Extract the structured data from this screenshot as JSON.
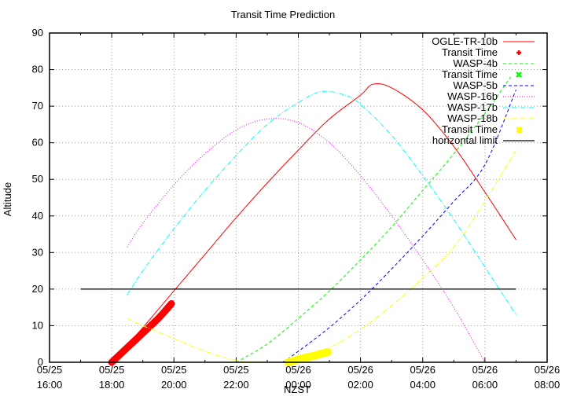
{
  "chart_data": {
    "type": "line",
    "title": "Transit Time Prediction",
    "xlabel": "NZST",
    "ylabel": "Altitude",
    "ylim": [
      0,
      90
    ],
    "yticks": [
      0,
      10,
      20,
      30,
      40,
      50,
      60,
      70,
      80,
      90
    ],
    "xlim_hours_from_start": [
      0,
      16
    ],
    "xticks": [
      {
        "date": "05/25",
        "time": "16:00"
      },
      {
        "date": "05/25",
        "time": "18:00"
      },
      {
        "date": "05/25",
        "time": "20:00"
      },
      {
        "date": "05/25",
        "time": "22:00"
      },
      {
        "date": "05/26",
        "time": "00:00"
      },
      {
        "date": "05/26",
        "time": "02:00"
      },
      {
        "date": "05/26",
        "time": "04:00"
      },
      {
        "date": "05/26",
        "time": "06:00"
      },
      {
        "date": "05/26",
        "time": "08:00"
      }
    ],
    "grid": true,
    "legend_position": "top-right",
    "series": [
      {
        "name": "OGLE-TR-10b",
        "style": "solid",
        "color": "#ff0000",
        "x": [
          2.0,
          3.0,
          4.0,
          5.0,
          6.0,
          7.0,
          8.0,
          9.0,
          10.0,
          10.4,
          11.0,
          12.0,
          13.0,
          14.0,
          15.0
        ],
        "y": [
          0,
          9.5,
          19.5,
          29.5,
          39.5,
          49,
          58,
          66.5,
          73,
          76,
          75,
          69,
          59,
          46.5,
          33.5
        ]
      },
      {
        "name": "Transit Time",
        "style": "points",
        "color": "#ff0000",
        "marker": "plus",
        "x": [
          2.0,
          2.5,
          3.0,
          3.5,
          3.92
        ],
        "y": [
          0,
          4,
          8,
          12,
          16
        ]
      },
      {
        "name": "WASP-4b",
        "style": "dashed",
        "color": "#00ff00",
        "x": [
          6.0,
          7.0,
          8.0,
          9.0,
          10.0,
          11.0,
          12.0,
          13.0,
          14.0,
          14.83
        ],
        "y": [
          0,
          5,
          12,
          19.5,
          28,
          37,
          47,
          57,
          68,
          78
        ]
      },
      {
        "name": "Transit Time",
        "style": "points",
        "color": "#00ff00",
        "marker": "cross",
        "x": [],
        "y": []
      },
      {
        "name": "WASP-5b",
        "style": "dashed",
        "color": "#0000ff",
        "x": [
          7.5,
          8.0,
          9.0,
          10.0,
          11.0,
          12.0,
          13.0,
          14.0,
          15.0
        ],
        "y": [
          0,
          3,
          9.5,
          17,
          25.5,
          34.5,
          44,
          54,
          74.5
        ]
      },
      {
        "name": "WASP-16b",
        "style": "dotted",
        "color": "#ff00ff",
        "x": [
          2.5,
          3.0,
          4.0,
          5.0,
          6.0,
          7.0,
          8.0,
          9.0,
          10.0,
          11.0,
          12.0,
          13.0,
          14.0
        ],
        "y": [
          31.5,
          38,
          48.5,
          57,
          63.5,
          66.5,
          65.5,
          60,
          51,
          40,
          28,
          15,
          0
        ]
      },
      {
        "name": "WASP-17b",
        "style": "dashdot",
        "color": "#00ffff",
        "x": [
          2.5,
          3.0,
          4.0,
          5.0,
          6.0,
          7.0,
          8.0,
          8.75,
          9.5,
          10.0,
          11.0,
          12.0,
          13.0,
          14.0,
          15.0
        ],
        "y": [
          18.5,
          25,
          36.5,
          47,
          56.5,
          65,
          71,
          74,
          73,
          70.5,
          62,
          51,
          39,
          26,
          13
        ]
      },
      {
        "name": "WASP-18b",
        "style": "dashdot",
        "color": "#ffff00",
        "x": [
          2.5,
          3.0,
          4.0,
          5.0,
          6.0,
          7.0,
          7.7,
          8.0,
          9.0,
          10.0,
          11.0,
          12.0,
          13.0,
          14.0,
          15.0
        ],
        "y": [
          12,
          10,
          6.5,
          3,
          0.5,
          -0.5,
          0,
          0.7,
          4,
          9,
          15.5,
          23,
          31.5,
          44,
          58
        ]
      },
      {
        "name": "Transit Time",
        "style": "points",
        "color": "#ffff00",
        "marker": "square",
        "x": [
          7.67,
          8.0,
          8.5,
          8.95
        ],
        "y": [
          0,
          0.8,
          1.8,
          2.8
        ]
      },
      {
        "name": "horizontal limit",
        "style": "solid",
        "color": "#000000",
        "x": [
          1.0,
          15.0
        ],
        "y": [
          20,
          20
        ]
      }
    ]
  },
  "legend": [
    {
      "label": "OGLE-TR-10b",
      "color": "#ff0000",
      "kind": "solid"
    },
    {
      "label": "Transit Time",
      "color": "#ff0000",
      "kind": "plus"
    },
    {
      "label": "WASP-4b",
      "color": "#00ff00",
      "kind": "dashed"
    },
    {
      "label": "Transit Time",
      "color": "#00ff00",
      "kind": "cross"
    },
    {
      "label": "WASP-5b",
      "color": "#0000ff",
      "kind": "dashed"
    },
    {
      "label": "WASP-16b",
      "color": "#ff00ff",
      "kind": "dotted"
    },
    {
      "label": "WASP-17b",
      "color": "#00ffff",
      "kind": "dashdot"
    },
    {
      "label": "WASP-18b",
      "color": "#ffff00",
      "kind": "dashdot"
    },
    {
      "label": "Transit Time",
      "color": "#ffff00",
      "kind": "square"
    },
    {
      "label": "horizontal limit",
      "color": "#000000",
      "kind": "solid"
    }
  ]
}
